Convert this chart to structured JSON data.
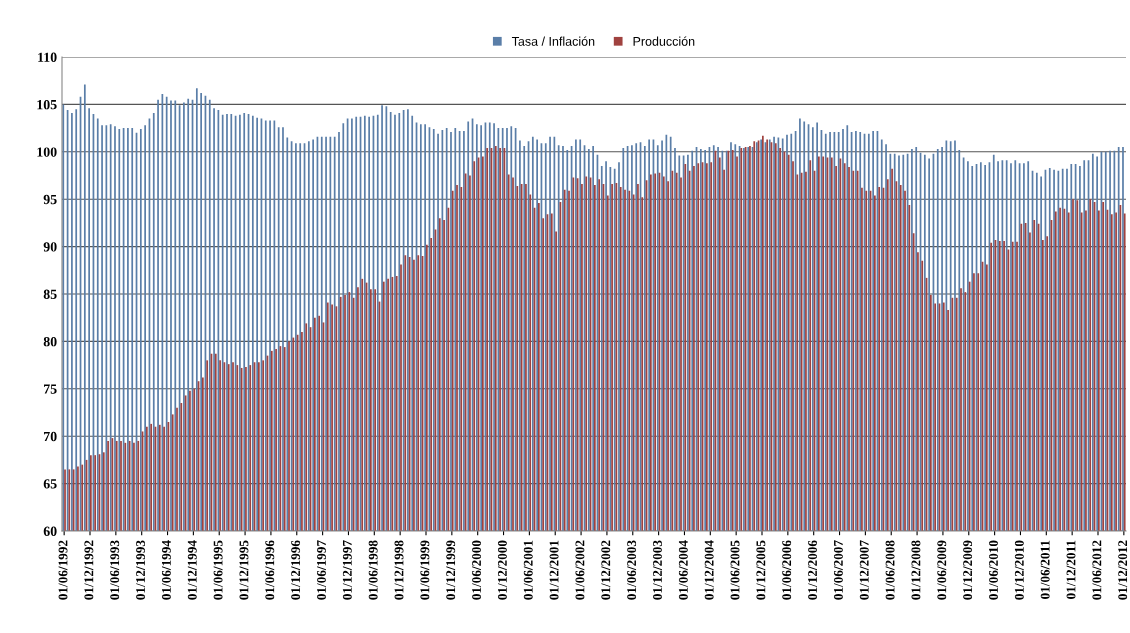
{
  "chart_data": {
    "type": "bar",
    "categories": [
      "01/06/1992",
      null,
      null,
      null,
      null,
      null,
      "01/12/1992",
      null,
      null,
      null,
      null,
      null,
      "01/06/1993",
      null,
      null,
      null,
      null,
      null,
      "01/12/1993",
      null,
      null,
      null,
      null,
      null,
      "01/06/1994",
      null,
      null,
      null,
      null,
      null,
      "01/12/1994",
      null,
      null,
      null,
      null,
      null,
      "01/06/1995",
      null,
      null,
      null,
      null,
      null,
      "01/12/1995",
      null,
      null,
      null,
      null,
      null,
      "01/06/1996",
      null,
      null,
      null,
      null,
      null,
      "01/12/1996",
      null,
      null,
      null,
      null,
      null,
      "01/06/1997",
      null,
      null,
      null,
      null,
      null,
      "01/12/1997",
      null,
      null,
      null,
      null,
      null,
      "01/06/1998",
      null,
      null,
      null,
      null,
      null,
      "01/12/1998",
      null,
      null,
      null,
      null,
      null,
      "01/06/1999",
      null,
      null,
      null,
      null,
      null,
      "01/12/1999",
      null,
      null,
      null,
      null,
      null,
      "01/06/2000",
      null,
      null,
      null,
      null,
      null,
      "01/12/2000",
      null,
      null,
      null,
      null,
      null,
      "01/06/2001",
      null,
      null,
      null,
      null,
      null,
      "01/12/2001",
      null,
      null,
      null,
      null,
      null,
      "01/06/2002",
      null,
      null,
      null,
      null,
      null,
      "01/12/2002",
      null,
      null,
      null,
      null,
      null,
      "01/06/2003",
      null,
      null,
      null,
      null,
      null,
      "01/12/2003",
      null,
      null,
      null,
      null,
      null,
      "01/06/2004",
      null,
      null,
      null,
      null,
      null,
      "01/12/2004",
      null,
      null,
      null,
      null,
      null,
      "01/06/2005",
      null,
      null,
      null,
      null,
      null,
      "01/12/2005",
      null,
      null,
      null,
      null,
      null,
      "01/06/2006",
      null,
      null,
      null,
      null,
      null,
      "01/12/2006",
      null,
      null,
      null,
      null,
      null,
      "01/06/2007",
      null,
      null,
      null,
      null,
      null,
      "01/12/2007",
      null,
      null,
      null,
      null,
      null,
      "01/06/2008",
      null,
      null,
      null,
      null,
      null,
      "01/12/2008",
      null,
      null,
      null,
      null,
      null,
      "01/06/2009",
      null,
      null,
      null,
      null,
      null,
      "01/12/2009",
      null,
      null,
      null,
      null,
      null,
      "01/06/2010",
      null,
      null,
      null,
      null,
      null,
      "01/12/2010",
      null,
      null,
      null,
      null,
      null,
      "01/06/2011",
      null,
      null,
      null,
      null,
      null,
      "01/12/2011",
      null,
      null,
      null,
      null,
      null,
      "01/06/2012",
      null,
      null,
      null,
      null,
      null,
      "01/12/2012"
    ],
    "series": [
      {
        "name": "Tasa / Inflación",
        "color": "#5a7ea8",
        "values": [
          105.0,
          104.4,
          104.1,
          104.5,
          105.8,
          107.1,
          104.6,
          104.0,
          103.5,
          102.8,
          102.8,
          102.9,
          102.7,
          102.4,
          102.5,
          102.5,
          102.5,
          102.0,
          102.4,
          102.8,
          103.5,
          104.1,
          105.5,
          106.1,
          105.8,
          105.4,
          105.4,
          104.9,
          105.2,
          105.6,
          105.5,
          106.7,
          106.2,
          105.9,
          105.5,
          104.6,
          104.4,
          103.9,
          104.0,
          104.0,
          103.8,
          103.9,
          104.1,
          104.0,
          103.8,
          103.6,
          103.5,
          103.3,
          103.3,
          103.3,
          102.6,
          102.6,
          101.5,
          101.1,
          100.9,
          100.9,
          100.9,
          101.1,
          101.3,
          101.6,
          101.6,
          101.6,
          101.6,
          101.6,
          102.1,
          103.0,
          103.5,
          103.5,
          103.7,
          103.7,
          103.8,
          103.7,
          103.8,
          103.9,
          104.9,
          104.8,
          104.2,
          103.9,
          104.1,
          104.4,
          104.5,
          103.8,
          103.1,
          102.9,
          102.9,
          102.6,
          102.4,
          101.9,
          102.3,
          102.5,
          102.1,
          102.5,
          102.2,
          102.2,
          103.2,
          103.5,
          102.9,
          102.8,
          103.1,
          103.1,
          103.0,
          102.5,
          102.5,
          102.5,
          102.7,
          102.5,
          101.2,
          100.6,
          101.1,
          101.6,
          101.3,
          100.9,
          100.9,
          101.6,
          101.6,
          100.7,
          100.6,
          100.2,
          100.6,
          101.3,
          101.3,
          100.7,
          100.3,
          100.6,
          99.7,
          98.5,
          99.0,
          98.4,
          98.2,
          98.9,
          100.4,
          100.6,
          100.7,
          100.9,
          101.0,
          100.6,
          101.3,
          101.3,
          100.7,
          101.2,
          101.8,
          101.6,
          100.4,
          99.6,
          99.6,
          99.7,
          100.1,
          100.5,
          100.3,
          100.2,
          100.5,
          100.7,
          100.5,
          100.1,
          100.1,
          101.0,
          100.8,
          100.6,
          100.4,
          100.5,
          100.5,
          101.0,
          101.3,
          101.0,
          101.3,
          101.6,
          101.5,
          101.4,
          101.8,
          101.9,
          102.2,
          103.5,
          103.2,
          102.9,
          102.6,
          103.1,
          102.3,
          101.9,
          102.1,
          102.1,
          102.1,
          102.4,
          102.8,
          102.1,
          102.2,
          102.1,
          101.9,
          101.9,
          102.2,
          102.2,
          101.3,
          100.8,
          99.8,
          99.8,
          99.6,
          99.7,
          99.8,
          100.3,
          100.5,
          99.9,
          99.7,
          99.3,
          99.8,
          100.3,
          100.5,
          101.2,
          101.1,
          101.2,
          100.2,
          99.4,
          99.0,
          98.5,
          98.7,
          98.9,
          98.6,
          98.9,
          99.7,
          99.0,
          99.1,
          99.1,
          98.8,
          99.1,
          98.8,
          98.8,
          99.0,
          98.0,
          97.8,
          97.4,
          98.1,
          98.3,
          98.1,
          98.0,
          98.2,
          98.2,
          98.7,
          98.7,
          98.5,
          99.1,
          99.1,
          99.8,
          99.5,
          100.0,
          100.0,
          100.1,
          100.1,
          100.5,
          100.5
        ]
      },
      {
        "name": "Producción",
        "color": "#a0423f",
        "values": [
          66.5,
          66.5,
          66.5,
          66.8,
          67.0,
          67.5,
          68.0,
          68.0,
          68.1,
          68.3,
          69.5,
          69.8,
          69.5,
          69.5,
          69.3,
          69.5,
          69.3,
          69.5,
          70.5,
          71.0,
          71.3,
          71.0,
          71.2,
          71.0,
          71.5,
          72.3,
          73.0,
          73.5,
          74.3,
          74.8,
          75.0,
          75.8,
          76.2,
          78.0,
          78.7,
          78.7,
          78.0,
          77.8,
          77.6,
          77.8,
          77.5,
          77.2,
          77.3,
          77.5,
          77.8,
          77.8,
          78.0,
          78.5,
          79.0,
          79.2,
          79.5,
          79.4,
          80.0,
          80.4,
          80.7,
          81.0,
          81.9,
          81.5,
          82.5,
          82.7,
          82.0,
          84.1,
          83.9,
          83.7,
          84.7,
          84.9,
          85.2,
          84.6,
          85.7,
          86.6,
          86.2,
          85.5,
          85.5,
          84.2,
          86.3,
          86.6,
          86.8,
          86.9,
          88.1,
          89.1,
          88.9,
          88.6,
          89.1,
          89.0,
          90.2,
          90.9,
          91.8,
          93.0,
          92.8,
          94.1,
          95.9,
          96.5,
          96.3,
          97.7,
          97.5,
          99.0,
          99.4,
          99.5,
          100.4,
          100.4,
          100.6,
          100.4,
          100.4,
          97.6,
          97.3,
          96.4,
          96.6,
          96.6,
          95.5,
          94.1,
          94.6,
          93.0,
          93.4,
          93.5,
          91.6,
          94.7,
          96.0,
          95.9,
          97.3,
          97.2,
          96.6,
          97.4,
          97.3,
          96.5,
          97.1,
          96.6,
          95.4,
          96.6,
          96.7,
          96.3,
          96.0,
          95.9,
          95.5,
          96.6,
          95.2,
          97.0,
          97.6,
          97.7,
          97.8,
          97.4,
          96.9,
          98.0,
          97.8,
          97.3,
          98.7,
          98.0,
          98.5,
          98.8,
          98.9,
          98.8,
          98.9,
          100.1,
          99.4,
          98.1,
          100.1,
          100.2,
          99.5,
          100.4,
          100.5,
          100.6,
          101.1,
          101.2,
          101.7,
          101.3,
          101.0,
          100.9,
          100.4,
          100.0,
          99.7,
          99.0,
          97.6,
          97.8,
          97.9,
          99.1,
          98.0,
          99.5,
          99.5,
          99.4,
          99.4,
          98.5,
          99.3,
          98.8,
          98.4,
          98.0,
          98.0,
          96.2,
          95.9,
          95.9,
          95.4,
          96.3,
          96.2,
          97.1,
          98.2,
          96.9,
          96.5,
          95.9,
          94.4,
          91.4,
          89.4,
          88.5,
          86.7,
          84.9,
          84.0,
          84.0,
          84.1,
          83.3,
          84.6,
          84.6,
          85.6,
          85.2,
          86.3,
          87.2,
          87.2,
          88.4,
          88.1,
          90.4,
          90.7,
          90.6,
          90.6,
          89.7,
          90.5,
          90.5,
          92.4,
          92.5,
          91.5,
          92.8,
          92.4,
          90.7,
          91.1,
          92.8,
          93.7,
          94.1,
          94.0,
          93.6,
          95.0,
          94.9,
          93.6,
          93.8,
          95.0,
          94.7,
          93.8,
          94.7,
          93.9,
          93.4,
          93.6,
          94.4,
          93.5
        ]
      }
    ],
    "ylim": [
      60,
      110
    ],
    "yticks": [
      60,
      65,
      70,
      75,
      80,
      85,
      90,
      95,
      100,
      105,
      110
    ],
    "grid": "y",
    "legend": "top"
  }
}
